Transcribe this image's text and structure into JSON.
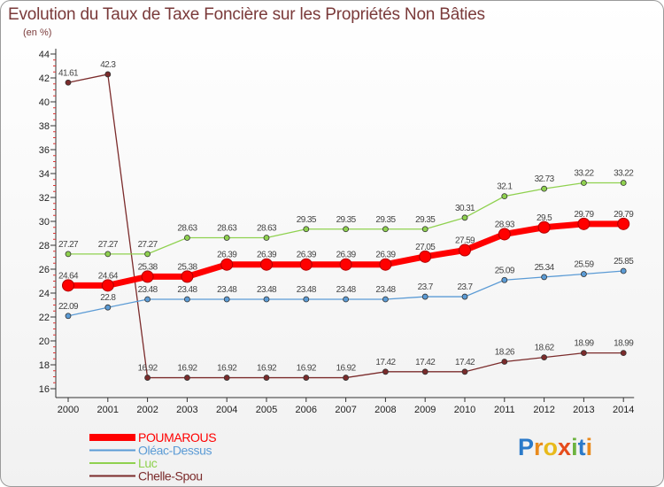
{
  "title": "Evolution du Taux de Taxe Foncière sur les Propriétés Non Bâties",
  "subtitle": "(en %)",
  "logo": {
    "text": "Proxiti",
    "letters": [
      "P",
      "r",
      "o",
      "x",
      "i",
      "t",
      "i"
    ],
    "colors": [
      "#2b7ac9",
      "#e98a1c",
      "#e8ba1c",
      "#e64c1c",
      "#6db33f",
      "#2b7ac9",
      "#e98a1c"
    ]
  },
  "chart_data": {
    "type": "line",
    "x": [
      "2000",
      "2001",
      "2002",
      "2003",
      "2004",
      "2005",
      "2006",
      "2007",
      "2008",
      "2009",
      "2010",
      "2011",
      "2012",
      "2013",
      "2014"
    ],
    "yticks": [
      "16",
      "18",
      "20",
      "22",
      "24",
      "26",
      "28",
      "30",
      "32",
      "34",
      "36",
      "38",
      "40",
      "42",
      "44"
    ],
    "ylim": [
      16,
      44
    ],
    "grid": false,
    "legend_position": "bottom-left",
    "series": [
      {
        "name": "POUMAROUS",
        "color": "#ff0000",
        "line_width": 7,
        "values": [
          24.64,
          24.64,
          25.38,
          25.38,
          26.39,
          26.39,
          26.39,
          26.39,
          26.39,
          27.05,
          27.59,
          28.93,
          29.5,
          29.79,
          29.79
        ],
        "labels": [
          "24.64",
          "24.64",
          "25.38",
          "25.38",
          "26.39",
          "26.39",
          "26.39",
          "26.39",
          "26.39",
          "27.05",
          "27.59",
          "28.93",
          "29.5",
          "29.79",
          "29.79"
        ]
      },
      {
        "name": "Oléac-Dessus",
        "color": "#5b9bd5",
        "line_width": 1.3,
        "values": [
          22.09,
          22.8,
          23.48,
          23.48,
          23.48,
          23.48,
          23.48,
          23.48,
          23.48,
          23.7,
          23.7,
          25.09,
          25.34,
          25.59,
          25.85
        ],
        "labels": [
          "22.09",
          "22.8",
          "23.48",
          "23.48",
          "23.48",
          "23.48",
          "23.48",
          "23.48",
          "23.48",
          "23.7",
          "23.7",
          "25.09",
          "25.34",
          "25.59",
          "25.85"
        ]
      },
      {
        "name": "Luc",
        "color": "#8fd14f",
        "line_width": 1.3,
        "values": [
          27.27,
          27.27,
          27.27,
          28.63,
          28.63,
          28.63,
          29.35,
          29.35,
          29.35,
          29.35,
          30.31,
          32.1,
          32.73,
          33.22,
          33.22
        ],
        "labels": [
          "27.27",
          "27.27",
          "27.27",
          "28.63",
          "28.63",
          "28.63",
          "29.35",
          "29.35",
          "29.35",
          "29.35",
          "30.31",
          "32.1",
          "32.73",
          "33.22",
          "33.22"
        ]
      },
      {
        "name": "Chelle-Spou",
        "color": "#7b2b2b",
        "line_width": 1.3,
        "values": [
          41.61,
          42.3,
          16.92,
          16.92,
          16.92,
          16.92,
          16.92,
          16.92,
          17.42,
          17.42,
          17.42,
          18.26,
          18.62,
          18.99,
          18.99
        ],
        "labels": [
          "41.61",
          "42.3",
          "16.92",
          "16.92",
          "16.92",
          "16.92",
          "16.92",
          "16.92",
          "17.42",
          "17.42",
          "17.42",
          "18.26",
          "18.62",
          "18.99",
          "18.99"
        ]
      }
    ]
  }
}
